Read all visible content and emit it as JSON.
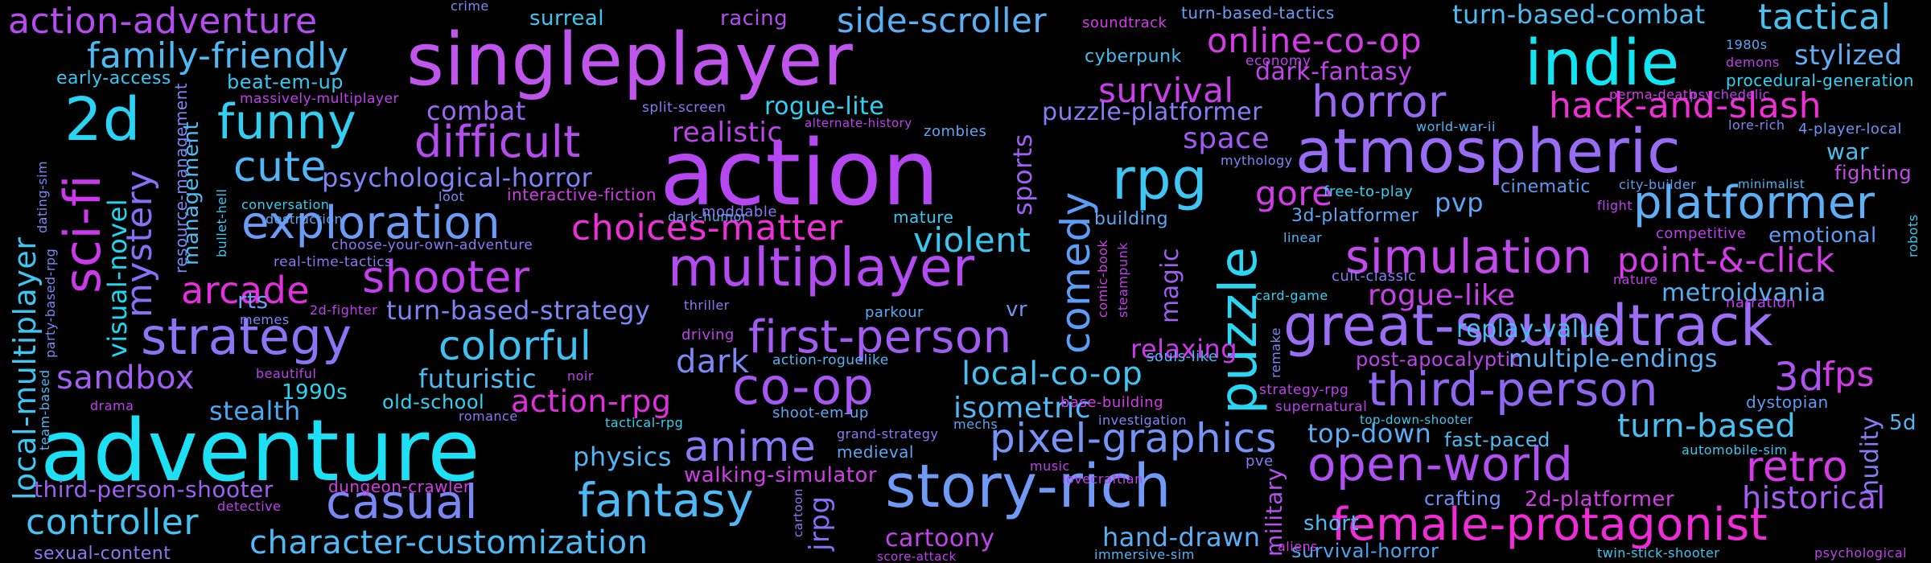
{
  "tags": [
    {
      "t": "singleplayer",
      "c": "#bf55ec"
    },
    {
      "t": "action",
      "c": "#b447f0"
    },
    {
      "t": "adventure",
      "c": "#1ee0f5"
    },
    {
      "t": "great-soundtrack",
      "c": "#9c6df5"
    },
    {
      "t": "indie",
      "c": "#12e5f2"
    },
    {
      "t": "atmospheric",
      "c": "#9a6cf5"
    },
    {
      "t": "multiplayer",
      "c": "#b34af2"
    },
    {
      "t": "story-rich",
      "c": "#6f9af5"
    },
    {
      "t": "strategy",
      "c": "#8c74f5"
    },
    {
      "t": "open-world",
      "c": "#b04ff2"
    },
    {
      "t": "female-protagonist",
      "c": "#f12bd8"
    },
    {
      "t": "fantasy",
      "c": "#4fb9f5"
    },
    {
      "t": "casual",
      "c": "#7a88f5"
    },
    {
      "t": "puzzle",
      "c": "#2ad6f2"
    },
    {
      "t": "platformer",
      "c": "#5db0f5"
    },
    {
      "t": "simulation",
      "c": "#c348ee"
    },
    {
      "t": "first-person",
      "c": "#a35cf2"
    },
    {
      "t": "pixel-graphics",
      "c": "#7594f5"
    },
    {
      "t": "exploration",
      "c": "#6c9cf5"
    },
    {
      "t": "co-op",
      "c": "#a656f2"
    },
    {
      "t": "third-person",
      "c": "#9167f2"
    },
    {
      "t": "shooter",
      "c": "#c13ff0"
    },
    {
      "t": "rpg",
      "c": "#3ec6f2"
    },
    {
      "t": "2d",
      "c": "#2ad3f2"
    },
    {
      "t": "funny",
      "c": "#31cff2"
    },
    {
      "t": "sci-fi",
      "c": "#cc38ec"
    },
    {
      "t": "colorful",
      "c": "#3dc2f2"
    },
    {
      "t": "horror",
      "c": "#9a67f2"
    },
    {
      "t": "difficult",
      "c": "#b54cf0"
    },
    {
      "t": "anime",
      "c": "#8c79f5"
    },
    {
      "t": "choices-matter",
      "c": "#ee2fda"
    },
    {
      "t": "arcade",
      "c": "#e42ee0"
    },
    {
      "t": "hack-and-slash",
      "c": "#f12fd6"
    },
    {
      "t": "local-multiplayer",
      "c": "#3ec6f2"
    },
    {
      "t": "cute",
      "c": "#50b6f5"
    },
    {
      "t": "family-friendly",
      "c": "#4dbaf5"
    },
    {
      "t": "action-adventure",
      "c": "#b54cf0"
    },
    {
      "t": "survival",
      "c": "#cc3eec"
    },
    {
      "t": "online-co-op",
      "c": "#d43ae8"
    },
    {
      "t": "dark-fantasy",
      "c": "#c244ec"
    },
    {
      "t": "violent",
      "c": "#39c8f2"
    },
    {
      "t": "comedy",
      "c": "#5c9df5"
    },
    {
      "t": "point-&-click",
      "c": "#d33ce8"
    },
    {
      "t": "fps",
      "c": "#d43ae8"
    },
    {
      "t": "3d",
      "c": "#ae52f0"
    },
    {
      "t": "retro",
      "c": "#d53ae8"
    },
    {
      "t": "gore",
      "c": "#d33ce8"
    },
    {
      "t": "turn-based",
      "c": "#48c0f2"
    },
    {
      "t": "local-co-op",
      "c": "#45c2f2"
    },
    {
      "t": "controller",
      "c": "#44c4f2"
    },
    {
      "t": "dark",
      "c": "#7b88f5"
    },
    {
      "t": "character-customization",
      "c": "#4fb9f5"
    },
    {
      "t": "action-rpg",
      "c": "#e12fe0"
    },
    {
      "t": "sandbox",
      "c": "#a05ef2"
    },
    {
      "t": "top-down",
      "c": "#5aaef5"
    },
    {
      "t": "hand-drawn",
      "c": "#5aaef5"
    },
    {
      "t": "isometric",
      "c": "#52b7f5"
    },
    {
      "t": "tactical",
      "c": "#46c2f2"
    },
    {
      "t": "stylized",
      "c": "#60acf5"
    },
    {
      "t": "side-scroller",
      "c": "#59b0f5"
    },
    {
      "t": "mystery",
      "c": "#8a6ef5"
    },
    {
      "t": "historical",
      "c": "#a65ef2"
    },
    {
      "t": "turn-based-combat",
      "c": "#4cbcf2"
    },
    {
      "t": "turn-based-strategy",
      "c": "#7c86f5"
    },
    {
      "t": "psychological-horror",
      "c": "#7f83f5"
    },
    {
      "t": "multiple-endings",
      "c": "#58b0f5"
    },
    {
      "t": "metroidvania",
      "c": "#57afef"
    },
    {
      "t": "replay-value",
      "c": "#4fb8f5"
    },
    {
      "t": "rogue-like",
      "c": "#c93fec"
    },
    {
      "t": "space",
      "c": "#a15bf2"
    },
    {
      "t": "realistic",
      "c": "#bc46ee"
    },
    {
      "t": "combat",
      "c": "#9d66f5"
    },
    {
      "t": "visual-novel",
      "c": "#1ad9f2"
    },
    {
      "t": "physics",
      "c": "#4fb6f5"
    },
    {
      "t": "stealth",
      "c": "#4aa8ef"
    },
    {
      "t": "futuristic",
      "c": "#4cbcf2"
    },
    {
      "t": "puzzle-platformer",
      "c": "#8a7bf5"
    },
    {
      "t": "relaxing",
      "c": "#cc38ec"
    },
    {
      "t": "pvp",
      "c": "#5aa8f5"
    },
    {
      "t": "war",
      "c": "#48c0f2"
    },
    {
      "t": "fighting",
      "c": "#c54aec"
    },
    {
      "t": "third-person-shooter",
      "c": "#9e60f2"
    },
    {
      "t": "walking-simulator",
      "c": "#d13de8"
    },
    {
      "t": "post-apocalyptic",
      "c": "#c040ee"
    },
    {
      "t": "1990s",
      "c": "#29d5f2"
    },
    {
      "t": "old-school",
      "c": "#2fd2f2"
    },
    {
      "t": "rts",
      "c": "#6da0f5"
    },
    {
      "t": "management",
      "c": "#4cbcf2"
    },
    {
      "t": "rogue-lite",
      "c": "#2fd2f2"
    },
    {
      "t": "sports",
      "c": "#9e60f2"
    },
    {
      "t": "magic",
      "c": "#a05ef2"
    },
    {
      "t": "military",
      "c": "#b452f0"
    },
    {
      "t": "nudity",
      "c": "#8a79f5"
    },
    {
      "t": "cartoony",
      "c": "#c344ec"
    },
    {
      "t": "jrpg",
      "c": "#8a6ef5"
    },
    {
      "t": "short",
      "c": "#49bcf2"
    },
    {
      "t": "survival-horror",
      "c": "#4aa4ef"
    },
    {
      "t": "fast-paced",
      "c": "#4cbcf2"
    },
    {
      "t": "2d-platformer",
      "c": "#d33ce8"
    },
    {
      "t": "crafting",
      "c": "#6d90f5"
    },
    {
      "t": "emotional",
      "c": "#5c9df5"
    },
    {
      "t": "dystopian",
      "c": "#5a9cf2"
    },
    {
      "t": "5d",
      "c": "#4fb6f5"
    },
    {
      "t": "vr",
      "c": "#6f92f5"
    },
    {
      "t": "beat-em-up",
      "c": "#35c8f2"
    },
    {
      "t": "early-access",
      "c": "#35c8f2"
    },
    {
      "t": "procedural-generation",
      "c": "#2fd2f2"
    },
    {
      "t": "surreal",
      "c": "#39c8f2"
    },
    {
      "t": "racing",
      "c": "#b34af2"
    },
    {
      "t": "crime",
      "c": "#7b88f5"
    },
    {
      "t": "soundtrack",
      "c": "#d33ce8"
    },
    {
      "t": "turn-based-tactics",
      "c": "#6d9cf5"
    },
    {
      "t": "cyberpunk",
      "c": "#42bef2"
    },
    {
      "t": "economy",
      "c": "#c13ff0"
    },
    {
      "t": "perma-death",
      "c": "#d33ce8"
    },
    {
      "t": "psychedelic",
      "c": "#c13ff0"
    },
    {
      "t": "1980s",
      "c": "#5aa8f5"
    },
    {
      "t": "demons",
      "c": "#c13ff0"
    },
    {
      "t": "massively-multiplayer",
      "c": "#c13ff0"
    },
    {
      "t": "split-screen",
      "c": "#8a79f5"
    },
    {
      "t": "alternate-history",
      "c": "#c13ff0"
    },
    {
      "t": "zombies",
      "c": "#5aa8f5"
    },
    {
      "t": "world-war-ii",
      "c": "#4fb6f5"
    },
    {
      "t": "lore-rich",
      "c": "#7f83f5"
    },
    {
      "t": "4-player-local",
      "c": "#6f92f5"
    },
    {
      "t": "mythology",
      "c": "#7b88f5"
    },
    {
      "t": "minimalist",
      "c": "#4fb6f5"
    },
    {
      "t": "city-builder",
      "c": "#5a9cf2"
    },
    {
      "t": "flight",
      "c": "#c13ff0"
    },
    {
      "t": "free-to-play",
      "c": "#2fd2f2"
    },
    {
      "t": "cinematic",
      "c": "#5a9cf2"
    },
    {
      "t": "3d-platformer",
      "c": "#5aa8f5"
    },
    {
      "t": "interactive-fiction",
      "c": "#d33ce8"
    },
    {
      "t": "conversation",
      "c": "#2fd2f2"
    },
    {
      "t": "loot",
      "c": "#7b88f5"
    },
    {
      "t": "moddable",
      "c": "#8a79f5"
    },
    {
      "t": "dark-humor",
      "c": "#5aa8f5"
    },
    {
      "t": "mature",
      "c": "#39c8f2"
    },
    {
      "t": "building",
      "c": "#5aa8f5"
    },
    {
      "t": "linear",
      "c": "#4fb6f5"
    },
    {
      "t": "competitive",
      "c": "#c13ff0"
    },
    {
      "t": "robots",
      "c": "#39c8f2"
    },
    {
      "t": "destruction",
      "c": "#5aa8f5"
    },
    {
      "t": "choose-your-own-adventure",
      "c": "#8a79f5"
    },
    {
      "t": "real-time-tactics",
      "c": "#8a79f5"
    },
    {
      "t": "bullet-hell",
      "c": "#35c8f2"
    },
    {
      "t": "resource-management",
      "c": "#7b88f5"
    },
    {
      "t": "dating-sim",
      "c": "#7b88f5"
    },
    {
      "t": "comic-book",
      "c": "#d33ce8"
    },
    {
      "t": "steampunk",
      "c": "#c13ff0"
    },
    {
      "t": "cult-classic",
      "c": "#8a79f5"
    },
    {
      "t": "card-game",
      "c": "#2fd2f2"
    },
    {
      "t": "nature",
      "c": "#c13ff0"
    },
    {
      "t": "narration",
      "c": "#c13ff0"
    },
    {
      "t": "party-based-rpg",
      "c": "#7b88f5"
    },
    {
      "t": "2d-fighter",
      "c": "#c13ff0"
    },
    {
      "t": "memes",
      "c": "#7b88f5"
    },
    {
      "t": "thriller",
      "c": "#8a79f5"
    },
    {
      "t": "parkour",
      "c": "#5aa8f5"
    },
    {
      "t": "driving",
      "c": "#c13ff0"
    },
    {
      "t": "souls-like",
      "c": "#4fb6f5"
    },
    {
      "t": "remake",
      "c": "#7b88f5"
    },
    {
      "t": "beautiful",
      "c": "#c13ff0"
    },
    {
      "t": "noir",
      "c": "#c13ff0"
    },
    {
      "t": "action-roguelike",
      "c": "#4fb6f5"
    },
    {
      "t": "strategy-rpg",
      "c": "#c13ff0"
    },
    {
      "t": "supernatural",
      "c": "#c13ff0"
    },
    {
      "t": "team-based",
      "c": "#4fb6f5"
    },
    {
      "t": "drama",
      "c": "#c13ff0"
    },
    {
      "t": "romance",
      "c": "#8a79f5"
    },
    {
      "t": "tactical-rpg",
      "c": "#2fd2f2"
    },
    {
      "t": "shoot-em-up",
      "c": "#5aa8f5"
    },
    {
      "t": "base-building",
      "c": "#d33ce8"
    },
    {
      "t": "mechs",
      "c": "#5aa8f5"
    },
    {
      "t": "investigation",
      "c": "#7b88f5"
    },
    {
      "t": "top-down-shooter",
      "c": "#39c8f2"
    },
    {
      "t": "grand-strategy",
      "c": "#8a79f5"
    },
    {
      "t": "medieval",
      "c": "#5aa8f5"
    },
    {
      "t": "music",
      "c": "#c13ff0"
    },
    {
      "t": "pve",
      "c": "#8a79f5"
    },
    {
      "t": "automobile-sim",
      "c": "#39c8f2"
    },
    {
      "t": "lovecraftian",
      "c": "#c13ff0"
    },
    {
      "t": "dungeon-crawler",
      "c": "#d33ce8"
    },
    {
      "t": "detective",
      "c": "#c13ff0"
    },
    {
      "t": "sexual-content",
      "c": "#8a79f5"
    },
    {
      "t": "cartoon",
      "c": "#8a79f5"
    },
    {
      "t": "score-attack",
      "c": "#c13ff0"
    },
    {
      "t": "immersive-sim",
      "c": "#4fb6f5"
    },
    {
      "t": "aliens",
      "c": "#d33ce8"
    },
    {
      "t": "twin-stick-shooter",
      "c": "#39c8f2"
    },
    {
      "t": "psychological",
      "c": "#c13ff0"
    }
  ]
}
